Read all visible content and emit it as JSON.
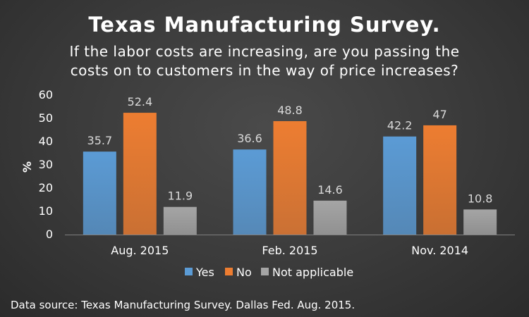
{
  "chart_data": {
    "type": "bar",
    "title": "Texas Manufacturing Survey.",
    "subtitle_lines": [
      "If the labor costs are increasing, are you passing the",
      "costs on to customers in the way of price increases?"
    ],
    "ylabel": "%",
    "xlabel": "",
    "ylim": [
      0,
      60
    ],
    "yticks": [
      0,
      10,
      20,
      30,
      40,
      50,
      60
    ],
    "categories": [
      "Aug. 2015",
      "Feb. 2015",
      "Nov. 2014"
    ],
    "series": [
      {
        "name": "Yes",
        "values": [
          35.7,
          36.6,
          42.2
        ],
        "labels": [
          "35.7",
          "36.6",
          "42.2"
        ],
        "color": "#5b9bd5"
      },
      {
        "name": "No",
        "values": [
          52.4,
          48.8,
          47
        ],
        "labels": [
          "52.4",
          "48.8",
          "47"
        ],
        "color": "#ed7d31"
      },
      {
        "name": "Not applicable",
        "values": [
          11.9,
          14.6,
          10.8
        ],
        "labels": [
          "11.9",
          "14.6",
          "10.8"
        ],
        "color": "#a5a5a5"
      }
    ],
    "legend_position": "bottom",
    "grid": false
  },
  "source_note": "Data source: Texas Manufacturing Survey. Dallas Fed. Aug. 2015."
}
